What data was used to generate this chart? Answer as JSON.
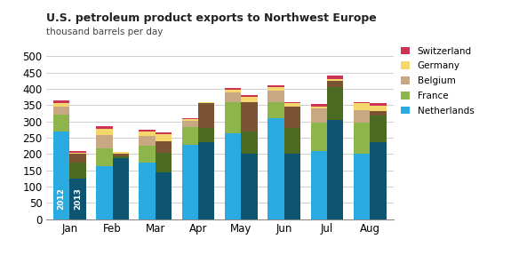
{
  "title": "U.S. petroleum product exports to Northwest Europe",
  "subtitle": "thousand barrels per day",
  "months": [
    "Jan",
    "Feb",
    "Mar",
    "Apr",
    "May",
    "Jun",
    "Jul",
    "Aug"
  ],
  "colors_2012": {
    "Netherlands": "#29ABE2",
    "France": "#8DB54B",
    "Belgium": "#C8A882",
    "Germany": "#F5D76E",
    "Switzerland": "#CC3355"
  },
  "colors_2013": {
    "Netherlands": "#0D5570",
    "France": "#4C6B22",
    "Belgium": "#7B5533",
    "Germany": "#F5D76E",
    "Switzerland": "#CC3355"
  },
  "data_2012": {
    "Netherlands": [
      270,
      162,
      175,
      227,
      263,
      310,
      210,
      200
    ],
    "France": [
      50,
      55,
      50,
      55,
      95,
      50,
      85,
      95
    ],
    "Belgium": [
      25,
      40,
      30,
      20,
      30,
      35,
      45,
      40
    ],
    "Germany": [
      10,
      20,
      15,
      5,
      10,
      10,
      5,
      20
    ],
    "Switzerland": [
      10,
      8,
      5,
      3,
      5,
      5,
      8,
      5
    ]
  },
  "data_2013": {
    "Netherlands": [
      125,
      187,
      145,
      235,
      200,
      200,
      305,
      237
    ],
    "France": [
      50,
      5,
      60,
      45,
      70,
      80,
      100,
      80
    ],
    "Belgium": [
      25,
      10,
      35,
      75,
      90,
      65,
      20,
      15
    ],
    "Germany": [
      5,
      5,
      20,
      5,
      15,
      10,
      5,
      15
    ],
    "Switzerland": [
      5,
      0,
      5,
      0,
      5,
      5,
      10,
      8
    ]
  },
  "ylim": [
    0,
    500
  ],
  "yticks": [
    0,
    50,
    100,
    150,
    200,
    250,
    300,
    350,
    400,
    450,
    500
  ],
  "bar_width": 0.38,
  "background_color": "#FFFFFF",
  "grid_color": "#C8C8C8",
  "legend_labels": [
    "Switzerland",
    "Germany",
    "Belgium",
    "France",
    "Netherlands"
  ],
  "legend_colors_2012": [
    "#CC3355",
    "#F5D76E",
    "#C8A882",
    "#8DB54B",
    "#29ABE2"
  ]
}
